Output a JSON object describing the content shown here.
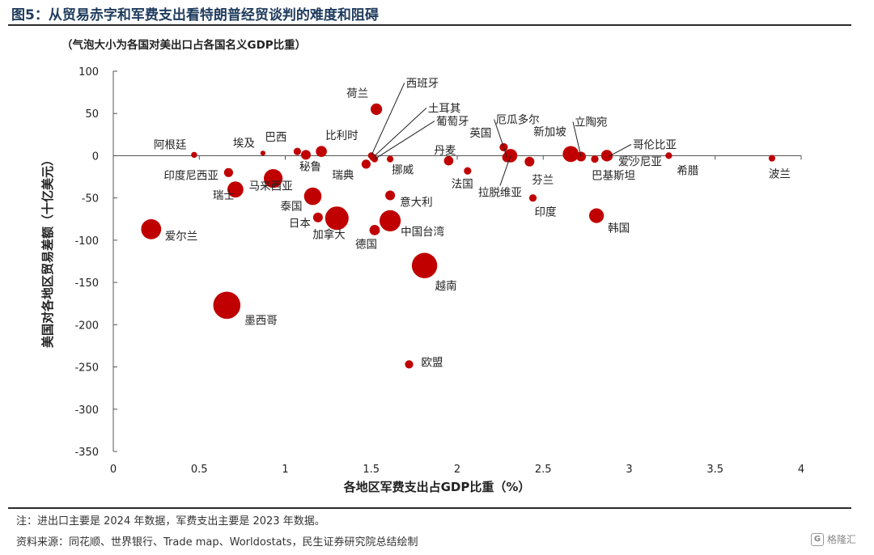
{
  "header": {
    "title": "图5：从贸易赤字和军费支出看特朗普经贸谈判的难度和阻碍",
    "subtitle": "（气泡大小为各国对美出口占各国名义GDP比重）"
  },
  "footer": {
    "note": "注：进出口主要是 2024 年数据，军费支出主要是 2023 年数据。",
    "source": "资料来源：同花顺、世界银行、Trade map、Worldostats，民生证券研究院总结绘制",
    "watermark": "格隆汇"
  },
  "chart_data": {
    "type": "scatter",
    "variant": "bubble",
    "xlabel": "各地区军费支出占GDP比重（%）",
    "ylabel": "美国对各地区贸易差额（十亿美元）",
    "xlim": [
      0,
      4
    ],
    "ylim": [
      -350,
      100
    ],
    "xticks": [
      0,
      0.5,
      1,
      1.5,
      2,
      2.5,
      3,
      3.5,
      4
    ],
    "xtick_labels": [
      "0",
      "0.5",
      "1",
      "1.5",
      "2",
      "2.5",
      "3",
      "3.5",
      "4"
    ],
    "yticks": [
      100,
      50,
      0,
      -50,
      -100,
      -150,
      -200,
      -250,
      -300,
      -350
    ],
    "ytick_labels": [
      "100",
      "50",
      "0",
      "-50",
      "-100",
      "-150",
      "-200",
      "-250",
      "-300",
      "-350"
    ],
    "bubble_color": "#c00000",
    "points": [
      {
        "name": "阿根廷",
        "x": 0.47,
        "y": 1,
        "size": 1.2
      },
      {
        "name": "埃及",
        "x": 0.87,
        "y": 3,
        "size": 0.8
      },
      {
        "name": "巴西",
        "x": 1.07,
        "y": 5,
        "size": 2
      },
      {
        "name": "秘鲁",
        "x": 1.12,
        "y": 1,
        "size": 3.5
      },
      {
        "name": "比利时",
        "x": 1.21,
        "y": 5,
        "size": 4.5
      },
      {
        "name": "荷兰",
        "x": 1.53,
        "y": 55,
        "size": 5
      },
      {
        "name": "西班牙",
        "x": 1.5,
        "y": 0,
        "size": 1.5
      },
      {
        "name": "土耳其",
        "x": 1.51,
        "y": -2,
        "size": 1.8
      },
      {
        "name": "葡萄牙",
        "x": 1.52,
        "y": -4,
        "size": 1.5
      },
      {
        "name": "瑞典",
        "x": 1.47,
        "y": -10,
        "size": 3
      },
      {
        "name": "挪威",
        "x": 1.61,
        "y": -4,
        "size": 1.5
      },
      {
        "name": "丹麦",
        "x": 1.95,
        "y": -6,
        "size": 3.2
      },
      {
        "name": "法国",
        "x": 2.06,
        "y": -18,
        "size": 2
      },
      {
        "name": "英国",
        "x": 2.27,
        "y": 10,
        "size": 2.5
      },
      {
        "name": "厄瓜多尔",
        "x": 2.29,
        "y": -2,
        "size": 3.5
      },
      {
        "name": "拉脱维亚",
        "x": 2.31,
        "y": 0,
        "size": 7
      },
      {
        "name": "芬兰",
        "x": 2.42,
        "y": -7,
        "size": 3.5
      },
      {
        "name": "印度",
        "x": 2.44,
        "y": -50,
        "size": 2
      },
      {
        "name": "新加坡",
        "x": 2.66,
        "y": 2,
        "size": 10
      },
      {
        "name": "立陶宛",
        "x": 2.72,
        "y": -1,
        "size": 3.5
      },
      {
        "name": "巴基斯坦",
        "x": 2.8,
        "y": -4,
        "size": 2
      },
      {
        "name": "爱沙尼亚",
        "x": 2.87,
        "y": 0,
        "size": 5
      },
      {
        "name": "哥伦比亚",
        "x": 2.88,
        "y": -1,
        "size": 2.5
      },
      {
        "name": "希腊",
        "x": 3.23,
        "y": 0,
        "size": 1.5
      },
      {
        "name": "波兰",
        "x": 3.83,
        "y": -3,
        "size": 1.5
      },
      {
        "name": "印度尼西亚",
        "x": 0.67,
        "y": -20,
        "size": 3
      },
      {
        "name": "瑞士",
        "x": 0.71,
        "y": -40,
        "size": 10
      },
      {
        "name": "马来西亚",
        "x": 0.93,
        "y": -27,
        "size": 14
      },
      {
        "name": "泰国",
        "x": 1.16,
        "y": -48,
        "size": 12
      },
      {
        "name": "日本",
        "x": 1.19,
        "y": -73,
        "size": 3.5
      },
      {
        "name": "加拿大",
        "x": 1.3,
        "y": -74,
        "size": 22
      },
      {
        "name": "意大利",
        "x": 1.61,
        "y": -47,
        "size": 3.5
      },
      {
        "name": "德国",
        "x": 1.52,
        "y": -88,
        "size": 4
      },
      {
        "name": "中国台湾",
        "x": 1.61,
        "y": -77,
        "size": 18
      },
      {
        "name": "韩国",
        "x": 2.81,
        "y": -71,
        "size": 8.5
      },
      {
        "name": "爱尔兰",
        "x": 0.22,
        "y": -87,
        "size": 16
      },
      {
        "name": "越南",
        "x": 1.81,
        "y": -130,
        "size": 26
      },
      {
        "name": "墨西哥",
        "x": 0.66,
        "y": -177,
        "size": 30
      },
      {
        "name": "欧盟",
        "x": 1.72,
        "y": -247,
        "size": 2.5
      }
    ]
  }
}
